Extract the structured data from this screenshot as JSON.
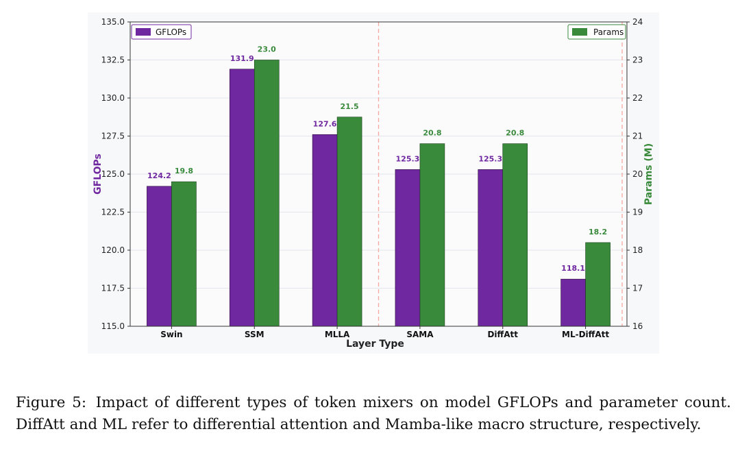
{
  "chart_data": {
    "type": "bar",
    "categories": [
      "Swin",
      "SSM",
      "MLLA",
      "SAMA",
      "DiffAtt",
      "ML-DiffAtt"
    ],
    "series": [
      {
        "name": "GFLOPs",
        "axis": "left",
        "color": "#7028a0",
        "values": [
          124.2,
          131.9,
          127.6,
          125.3,
          125.3,
          118.1
        ],
        "labels": [
          "124.2",
          "131.9",
          "127.6",
          "125.3",
          "125.3",
          "118.1"
        ]
      },
      {
        "name": "Params",
        "axis": "right",
        "color": "#3a8a3c",
        "values": [
          19.8,
          23.0,
          21.5,
          20.8,
          20.8,
          18.2
        ],
        "labels": [
          "19.8",
          "23.0",
          "21.5",
          "20.8",
          "20.8",
          "18.2"
        ]
      }
    ],
    "xlabel": "Layer Type",
    "ylabel": "GFLOPs",
    "y2label": "Params (M)",
    "ylim": [
      115,
      135
    ],
    "y2lim": [
      16,
      24
    ],
    "yticks": [
      "115.0",
      "117.5",
      "120.0",
      "122.5",
      "125.0",
      "127.5",
      "130.0",
      "132.5",
      "135.0"
    ],
    "y2ticks": [
      "16",
      "17",
      "18",
      "19",
      "20",
      "21",
      "22",
      "23",
      "24"
    ],
    "grid": true,
    "divider_after_category_index": 2,
    "legend": {
      "gflops_position": "top-left",
      "params_position": "top-right"
    },
    "left_axis_color": "#7028a0",
    "right_axis_color": "#3a8a3c",
    "divider_color": "#f4a8a0"
  },
  "caption": {
    "label": "Figure 5:",
    "text": "Impact of different types of token mixers on model GFLOPs and parameter count. DiffAtt and ML refer to differential attention and Mamba-like macro structure, respectively."
  }
}
